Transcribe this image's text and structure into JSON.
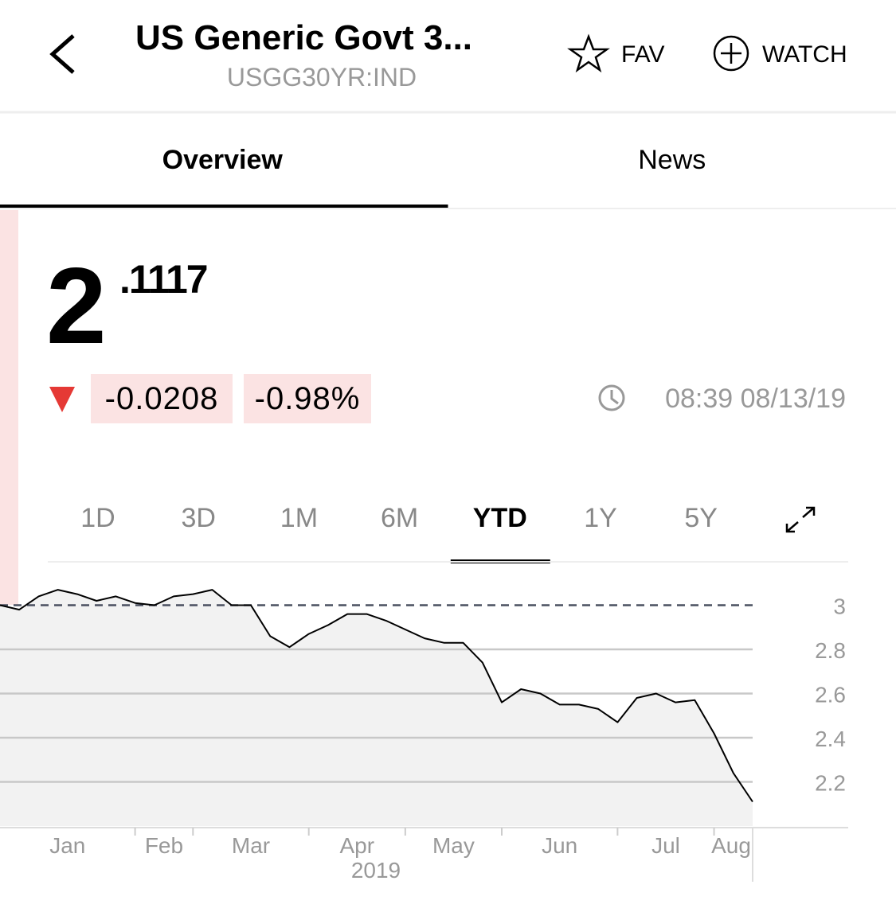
{
  "header": {
    "title": "US Generic Govt 3...",
    "ticker": "USGG30YR:IND",
    "fav": "FAV",
    "watch": "WATCH"
  },
  "tabs": {
    "items": [
      "Overview",
      "News"
    ],
    "active": "Overview"
  },
  "quote": {
    "price_int": "2",
    "price_frac": ".1117",
    "change": "-0.0208",
    "change_pct": "-0.98%",
    "time": "08:39 08/13/19"
  },
  "ranges": {
    "items": [
      "1D",
      "3D",
      "1M",
      "6M",
      "YTD",
      "1Y",
      "5Y"
    ],
    "active": "YTD"
  },
  "chart_data": {
    "type": "line",
    "color": "#000000",
    "area_color": "#f2f2f2",
    "categories": [
      "Jan",
      null,
      null,
      null,
      null,
      null,
      null,
      "Feb",
      null,
      null,
      "Mar",
      null,
      null,
      null,
      null,
      null,
      "Apr",
      null,
      null,
      null,
      null,
      "May",
      null,
      null,
      null,
      null,
      "Jun",
      null,
      null,
      null,
      null,
      null,
      "Jul",
      null,
      null,
      null,
      null,
      "Aug",
      null,
      null
    ],
    "values": [
      3.0,
      2.98,
      3.04,
      3.07,
      3.05,
      3.02,
      3.04,
      3.01,
      3.0,
      3.04,
      3.05,
      3.07,
      3.0,
      3.0,
      2.86,
      2.81,
      2.87,
      2.91,
      2.96,
      2.96,
      2.93,
      2.89,
      2.85,
      2.83,
      2.83,
      2.74,
      2.56,
      2.62,
      2.6,
      2.55,
      2.55,
      2.53,
      2.47,
      2.58,
      2.6,
      2.56,
      2.57,
      2.42,
      2.24,
      2.11
    ],
    "xlabel": "2019",
    "ylim": [
      2.0,
      3.2
    ],
    "yticks": [
      2.2,
      2.4,
      2.6,
      2.8,
      3
    ],
    "reference": 3,
    "grid": true
  }
}
